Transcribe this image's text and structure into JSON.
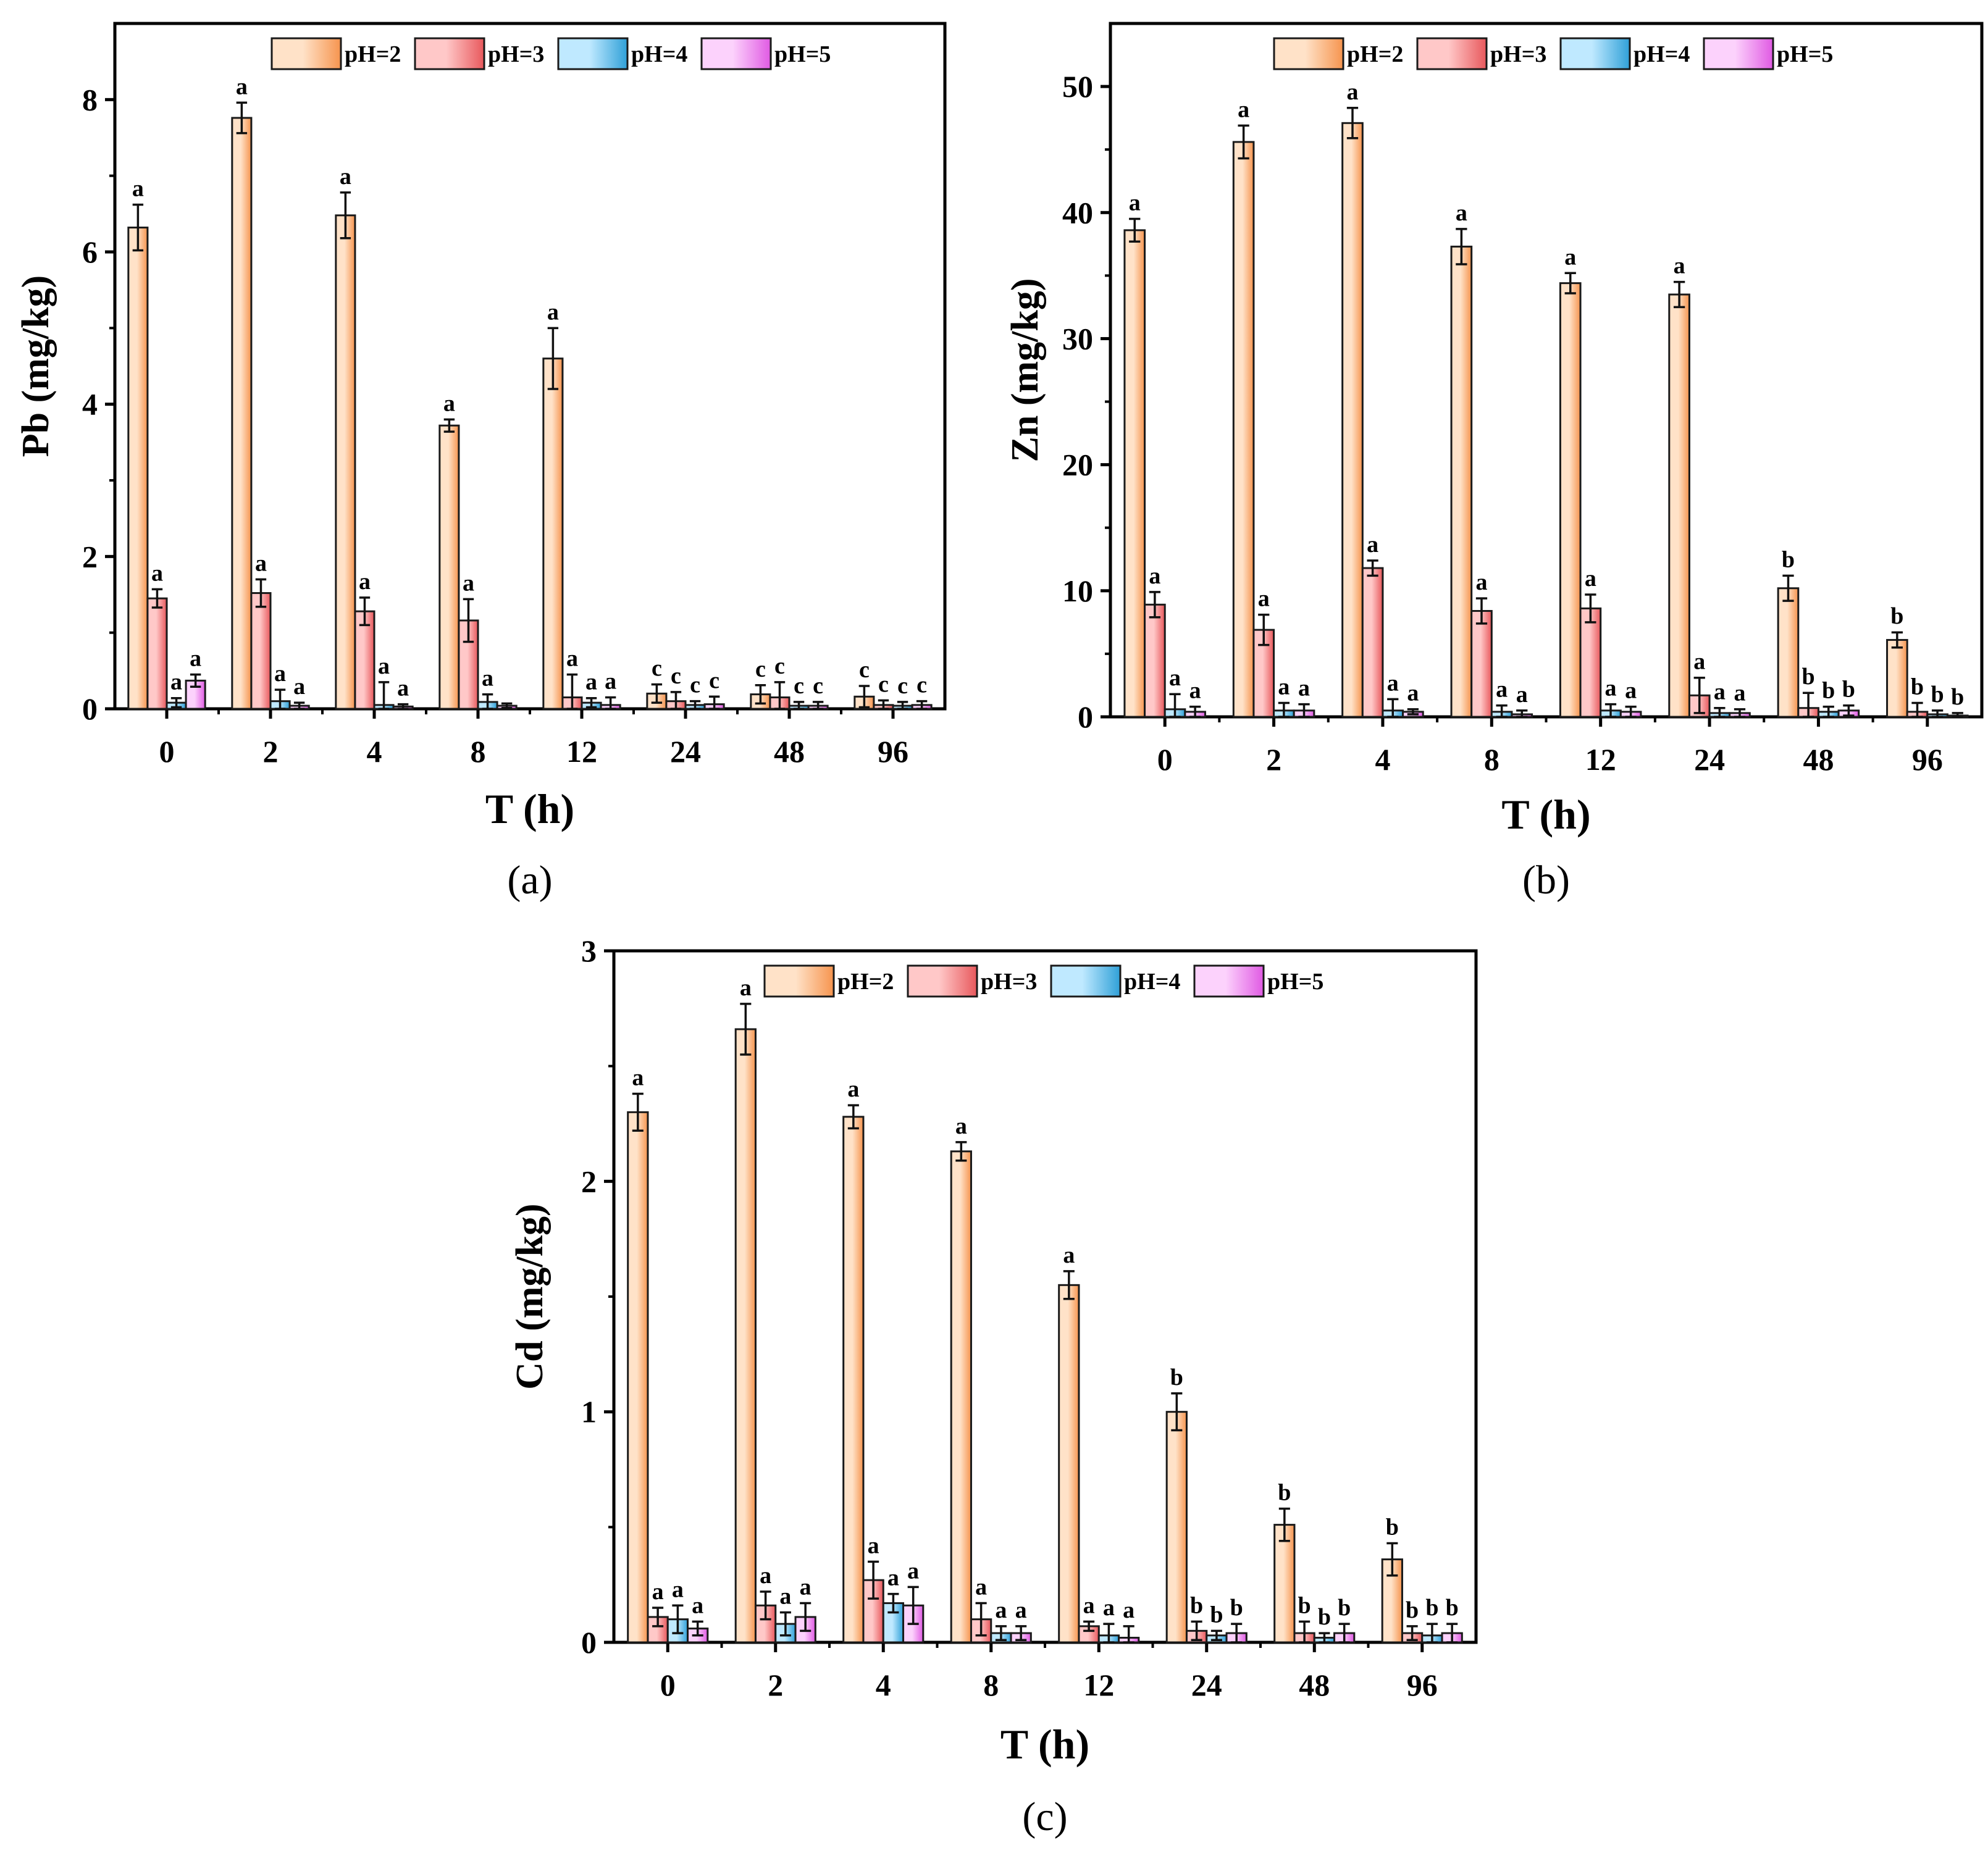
{
  "figure": {
    "series_names": [
      "pH=2",
      "pH=3",
      "pH=4",
      "pH=5"
    ],
    "series_colors": {
      "pH=2": {
        "light": "#FFE2C8",
        "dark": "#F6944E",
        "stroke": "#1a1a1a"
      },
      "pH=3": {
        "light": "#FFC8C8",
        "dark": "#E8585C",
        "stroke": "#1a1a1a"
      },
      "pH=4": {
        "light": "#BFE9FF",
        "dark": "#2FA0D8",
        "stroke": "#1a1a1a"
      },
      "pH=5": {
        "light": "#FCD2FC",
        "dark": "#E05AE3",
        "stroke": "#1a1a1a"
      }
    },
    "error_bar_color": "#111111"
  },
  "chart_data": [
    {
      "id": "a",
      "type": "bar",
      "panel_label": "(a)",
      "title": "",
      "xlabel": "T (h)",
      "ylabel": "Pb (mg/kg)",
      "categories": [
        "0",
        "2",
        "4",
        "8",
        "12",
        "24",
        "48",
        "96"
      ],
      "ylim": [
        0,
        9
      ],
      "yticks": [
        0,
        2,
        4,
        6,
        8
      ],
      "legend_position": "top",
      "series": [
        {
          "name": "pH=2",
          "values": [
            6.32,
            7.76,
            6.48,
            3.72,
            4.6,
            0.2,
            0.19,
            0.16
          ],
          "errors": [
            0.3,
            0.2,
            0.3,
            0.08,
            0.4,
            0.12,
            0.12,
            0.14
          ],
          "labels": [
            "a",
            "a",
            "a",
            "a",
            "a",
            "c",
            "c",
            "c"
          ]
        },
        {
          "name": "pH=3",
          "values": [
            1.45,
            1.52,
            1.28,
            1.16,
            0.15,
            0.1,
            0.15,
            0.05
          ],
          "errors": [
            0.12,
            0.18,
            0.18,
            0.28,
            0.3,
            0.12,
            0.2,
            0.06
          ],
          "labels": [
            "a",
            "a",
            "a",
            "a",
            "a",
            "c",
            "c",
            "c"
          ]
        },
        {
          "name": "pH=4",
          "values": [
            0.08,
            0.1,
            0.05,
            0.09,
            0.08,
            0.05,
            0.04,
            0.04
          ],
          "errors": [
            0.06,
            0.15,
            0.3,
            0.1,
            0.06,
            0.05,
            0.05,
            0.05
          ],
          "labels": [
            "a",
            "a",
            "a",
            "a",
            "a",
            "c",
            "c",
            "c"
          ]
        },
        {
          "name": "pH=5",
          "values": [
            0.37,
            0.04,
            0.03,
            0.04,
            0.05,
            0.06,
            0.04,
            0.05
          ],
          "errors": [
            0.08,
            0.04,
            0.03,
            0.03,
            0.1,
            0.1,
            0.05,
            0.05
          ],
          "labels": [
            "a",
            "a",
            "a",
            "",
            "a",
            "c",
            "c",
            "c"
          ]
        }
      ]
    },
    {
      "id": "b",
      "type": "bar",
      "panel_label": "(b)",
      "title": "",
      "xlabel": "T (h)",
      "ylabel": "Zn (mg/kg)",
      "categories": [
        "0",
        "2",
        "4",
        "8",
        "12",
        "24",
        "48",
        "96"
      ],
      "ylim": [
        0,
        55
      ],
      "yticks": [
        0,
        10,
        20,
        30,
        40,
        50
      ],
      "legend_position": "top",
      "series": [
        {
          "name": "pH=2",
          "values": [
            38.6,
            45.6,
            47.1,
            37.3,
            34.4,
            33.5,
            10.2,
            6.1
          ],
          "errors": [
            0.9,
            1.3,
            1.2,
            1.4,
            0.8,
            1.0,
            1.0,
            0.6
          ],
          "labels": [
            "a",
            "a",
            "a",
            "a",
            "a",
            "a",
            "b",
            "b"
          ]
        },
        {
          "name": "pH=3",
          "values": [
            8.9,
            6.9,
            11.8,
            8.4,
            8.6,
            1.7,
            0.7,
            0.4
          ],
          "errors": [
            1.0,
            1.2,
            0.6,
            1.0,
            1.1,
            1.4,
            1.2,
            0.7
          ],
          "labels": [
            "a",
            "a",
            "a",
            "a",
            "a",
            "a",
            "b",
            "b"
          ]
        },
        {
          "name": "pH=4",
          "values": [
            0.6,
            0.5,
            0.5,
            0.4,
            0.5,
            0.3,
            0.4,
            0.2
          ],
          "errors": [
            1.2,
            0.6,
            0.9,
            0.5,
            0.5,
            0.4,
            0.4,
            0.3
          ],
          "labels": [
            "a",
            "a",
            "a",
            "a",
            "a",
            "a",
            "b",
            "b"
          ]
        },
        {
          "name": "pH=5",
          "values": [
            0.4,
            0.5,
            0.4,
            0.2,
            0.4,
            0.3,
            0.5,
            0.1
          ],
          "errors": [
            0.4,
            0.5,
            0.2,
            0.3,
            0.4,
            0.3,
            0.4,
            0.2
          ],
          "labels": [
            "a",
            "a",
            "a",
            "a",
            "a",
            "a",
            "b",
            "b"
          ]
        }
      ]
    },
    {
      "id": "c",
      "type": "bar",
      "panel_label": "(c)",
      "title": "",
      "xlabel": "T (h)",
      "ylabel": "Cd (mg/kg)",
      "categories": [
        "0",
        "2",
        "4",
        "8",
        "12",
        "24",
        "48",
        "96"
      ],
      "ylim": [
        0,
        3
      ],
      "yticks": [
        0,
        1,
        2,
        3
      ],
      "legend_position": "top",
      "series": [
        {
          "name": "pH=2",
          "values": [
            2.3,
            2.66,
            2.28,
            2.13,
            1.55,
            1.0,
            0.51,
            0.36
          ],
          "errors": [
            0.08,
            0.11,
            0.05,
            0.04,
            0.06,
            0.08,
            0.07,
            0.07
          ],
          "labels": [
            "a",
            "a",
            "a",
            "a",
            "a",
            "b",
            "b",
            "b"
          ]
        },
        {
          "name": "pH=3",
          "values": [
            0.11,
            0.16,
            0.27,
            0.1,
            0.07,
            0.05,
            0.04,
            0.04
          ],
          "errors": [
            0.04,
            0.06,
            0.08,
            0.07,
            0.02,
            0.04,
            0.05,
            0.03
          ],
          "labels": [
            "a",
            "a",
            "a",
            "a",
            "a",
            "b",
            "b",
            "b"
          ]
        },
        {
          "name": "pH=4",
          "values": [
            0.1,
            0.08,
            0.17,
            0.04,
            0.03,
            0.03,
            0.02,
            0.03
          ],
          "errors": [
            0.06,
            0.05,
            0.04,
            0.03,
            0.05,
            0.02,
            0.02,
            0.05
          ],
          "labels": [
            "a",
            "a",
            "a",
            "a",
            "a",
            "b",
            "b",
            "b"
          ]
        },
        {
          "name": "pH=5",
          "values": [
            0.06,
            0.11,
            0.16,
            0.04,
            0.02,
            0.04,
            0.04,
            0.04
          ],
          "errors": [
            0.03,
            0.06,
            0.08,
            0.03,
            0.05,
            0.04,
            0.04,
            0.04
          ],
          "labels": [
            "a",
            "a",
            "a",
            "a",
            "a",
            "b",
            "b",
            "b"
          ]
        }
      ]
    }
  ]
}
